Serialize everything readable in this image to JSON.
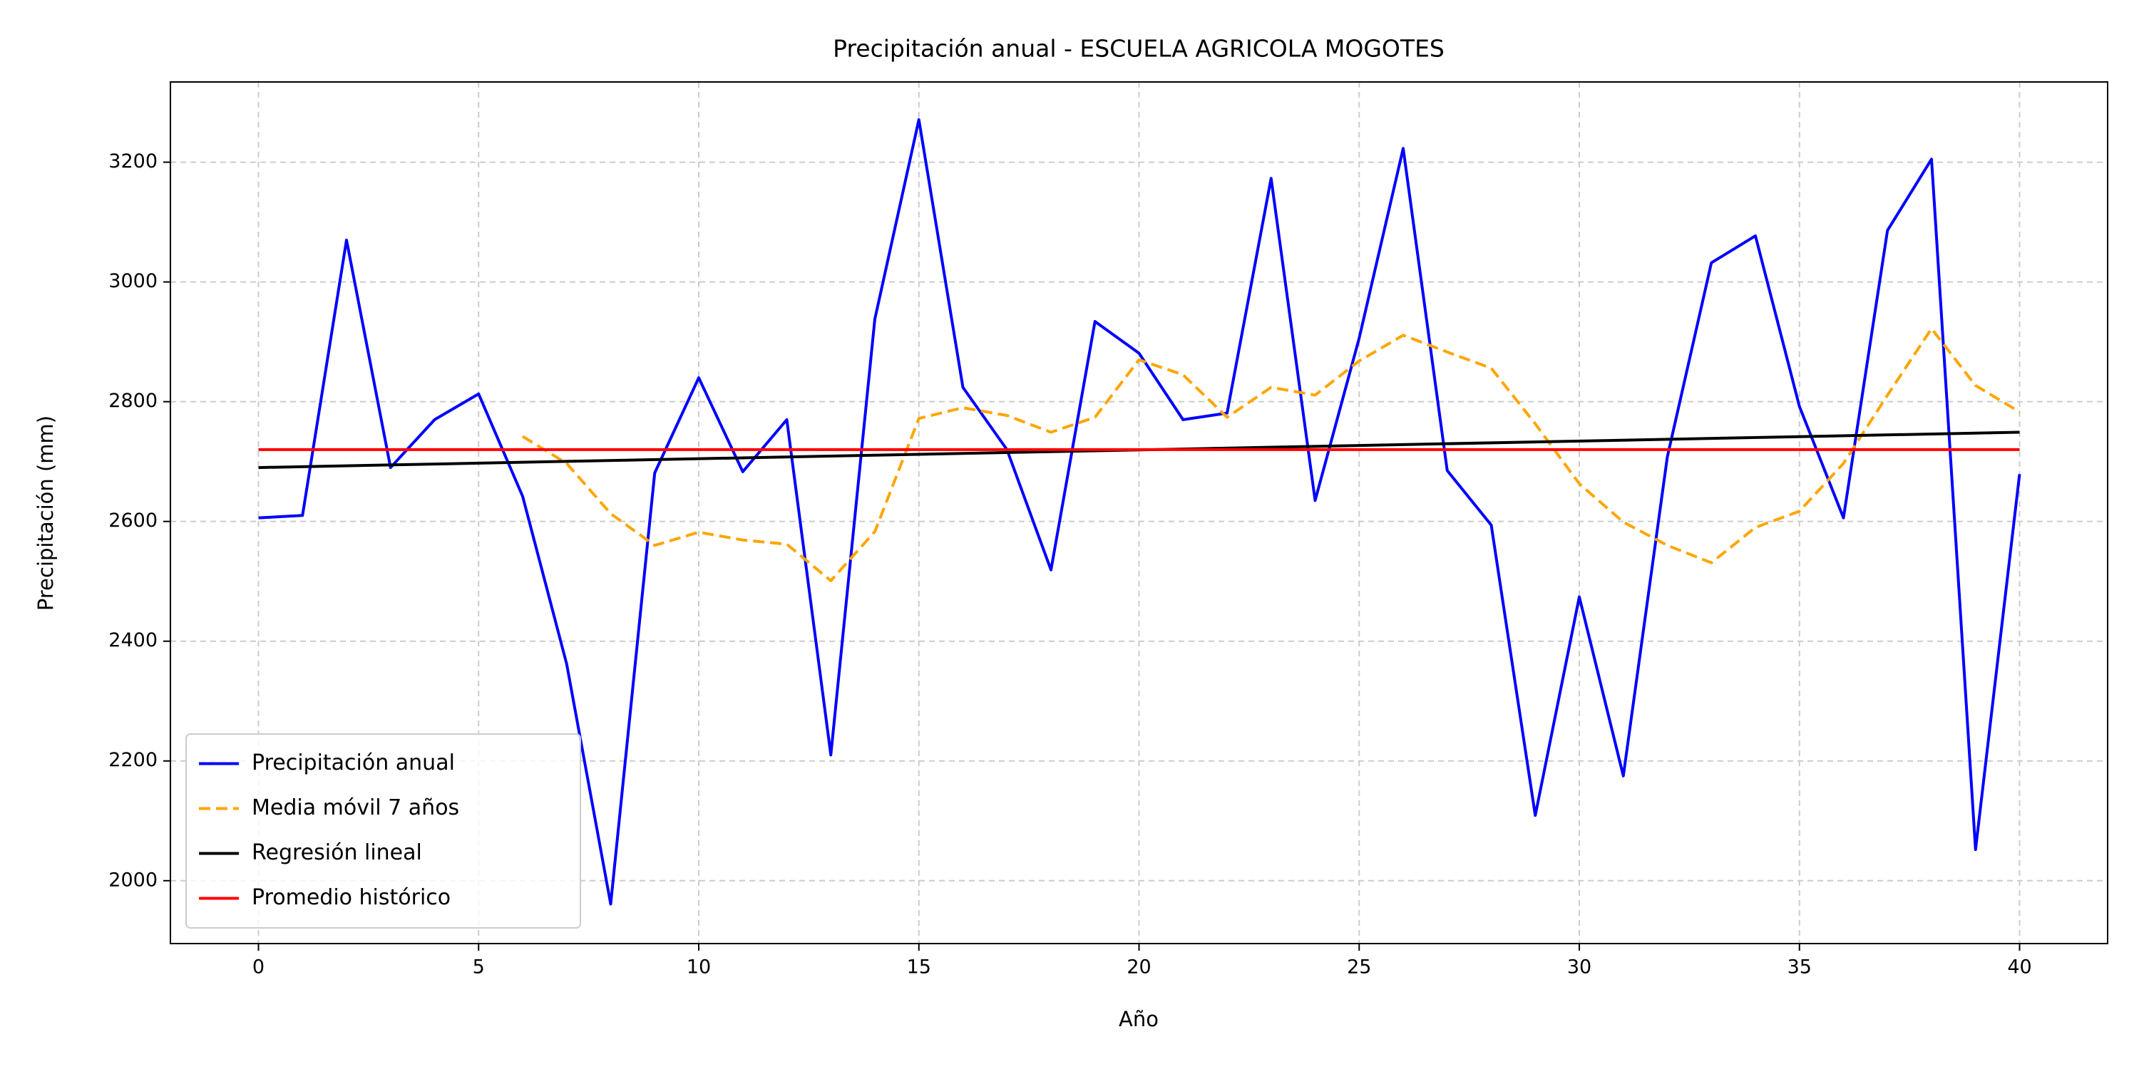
{
  "chart_data": {
    "type": "line",
    "title": "Precipitación anual - ESCUELA AGRICOLA MOGOTES",
    "xlabel": "Año",
    "ylabel": "Precipitación (mm)",
    "xlim": [
      -2,
      42
    ],
    "xticks": [
      0,
      5,
      10,
      15,
      20,
      25,
      30,
      35,
      40
    ],
    "ylim": [
      1895,
      3334
    ],
    "yticks": [
      2000,
      2200,
      2400,
      2600,
      2800,
      3000,
      3200
    ],
    "grid": true,
    "legend": "lower left",
    "series": [
      {
        "name": "Precipitación anual",
        "color": "#0000ff",
        "dash": "solid",
        "x": [
          0,
          1,
          2,
          3,
          4,
          5,
          6,
          7,
          8,
          9,
          10,
          11,
          12,
          13,
          14,
          15,
          16,
          17,
          18,
          19,
          20,
          21,
          22,
          23,
          24,
          25,
          26,
          27,
          28,
          29,
          30,
          31,
          32,
          33,
          34,
          35,
          36,
          37,
          38,
          39,
          40
        ],
        "values": [
          2606,
          2610,
          3070,
          2690,
          2770,
          2813,
          2642,
          2362,
          1961,
          2681,
          2840,
          2683,
          2770,
          2210,
          2938,
          3271,
          2824,
          2720,
          2519,
          2934,
          2881,
          2770,
          2781,
          3173,
          2635,
          2906,
          3223,
          2685,
          2594,
          2109,
          2474,
          2175,
          2708,
          3032,
          3077,
          2792,
          2606,
          3086,
          3205,
          2052,
          2679
        ]
      },
      {
        "name": "Media móvil 7 años",
        "color": "#ffa500",
        "dash": "dashed",
        "x": [
          0,
          1,
          2,
          3,
          4,
          5,
          6,
          7,
          8,
          9,
          10,
          11,
          12,
          13,
          14,
          15,
          16,
          17,
          18,
          19,
          20,
          21,
          22,
          23,
          24,
          25,
          26,
          27,
          28,
          29,
          30,
          31,
          32,
          33,
          34,
          35,
          36,
          37,
          38,
          39,
          40
        ],
        "values": [
          null,
          null,
          null,
          null,
          null,
          null,
          2742,
          2697,
          2613,
          2560,
          2582,
          2569,
          2562,
          2501,
          2583,
          2772,
          2790,
          2777,
          2749,
          2774,
          2870,
          2845,
          2774,
          2824,
          2811,
          2868,
          2911,
          2883,
          2856,
          2763,
          2663,
          2599,
          2560,
          2531,
          2590,
          2617,
          2697,
          2811,
          2922,
          2827,
          2783
        ]
      },
      {
        "name": "Regresión lineal",
        "color": "#000000",
        "dash": "solid",
        "x": [
          0,
          40
        ],
        "values": [
          2690,
          2749
        ]
      },
      {
        "name": "Promedio histórico",
        "color": "#ff0000",
        "dash": "solid",
        "x": [
          0,
          40
        ],
        "values": [
          2720,
          2720
        ]
      }
    ]
  }
}
